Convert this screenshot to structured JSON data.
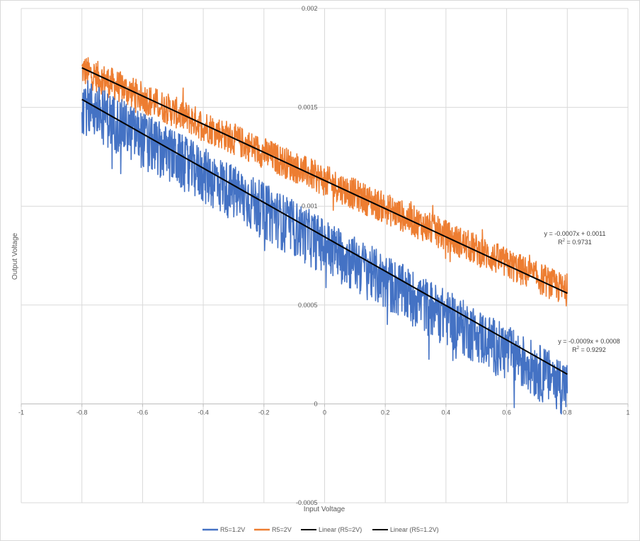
{
  "chart_data": {
    "type": "scatter",
    "title": "",
    "xlabel": "Input Voltage",
    "ylabel": "Output Voltage",
    "xlim": [
      -1,
      1
    ],
    "ylim": [
      -0.0005,
      0.002
    ],
    "x_ticks": [
      "-1",
      "-0.8",
      "-0.6",
      "-0.4",
      "-0.2",
      "0",
      "0.2",
      "0.4",
      "0.6",
      "0.8",
      "1"
    ],
    "y_ticks": [
      "-0.0005",
      "0",
      "0.0005",
      "0.001",
      "0.0015",
      "0.002"
    ],
    "grid": true,
    "legend_position": "bottom",
    "series": [
      {
        "name": "R5=1.2V",
        "color": "#4472C4",
        "style": "noisy-line",
        "x_range": [
          -0.8,
          0.8
        ],
        "trend_slope": -0.0009,
        "trend_intercept": 0.00083,
        "noise_amplitude": 0.00012,
        "noise_skew": "downward"
      },
      {
        "name": "R5=2V",
        "color": "#ED7D31",
        "style": "noisy-line",
        "x_range": [
          -0.8,
          0.8
        ],
        "trend_slope": -0.0007,
        "trend_intercept": 0.00113,
        "noise_amplitude": 8e-05,
        "noise_skew": "symmetric"
      },
      {
        "name": "Linear (R5=2V)",
        "color": "#000000",
        "style": "trendline",
        "x": [
          -0.8,
          0.8
        ],
        "y": [
          0.0017,
          0.00056
        ]
      },
      {
        "name": "Linear (R5=1.2V)",
        "color": "#000000",
        "style": "trendline",
        "x": [
          -0.8,
          0.8
        ],
        "y": [
          0.00154,
          0.00015
        ]
      }
    ],
    "annotations": [
      {
        "series": "R5=2V",
        "equation": "y = -0.0007x + 0.0011",
        "r2_prefix": "R",
        "r2_sup": "2",
        "r2_value": " = 0.9731"
      },
      {
        "series": "R5=1.2V",
        "equation": "y = -0.0009x + 0.0008",
        "r2_prefix": "R",
        "r2_sup": "2",
        "r2_value": " = 0.9292"
      }
    ]
  }
}
